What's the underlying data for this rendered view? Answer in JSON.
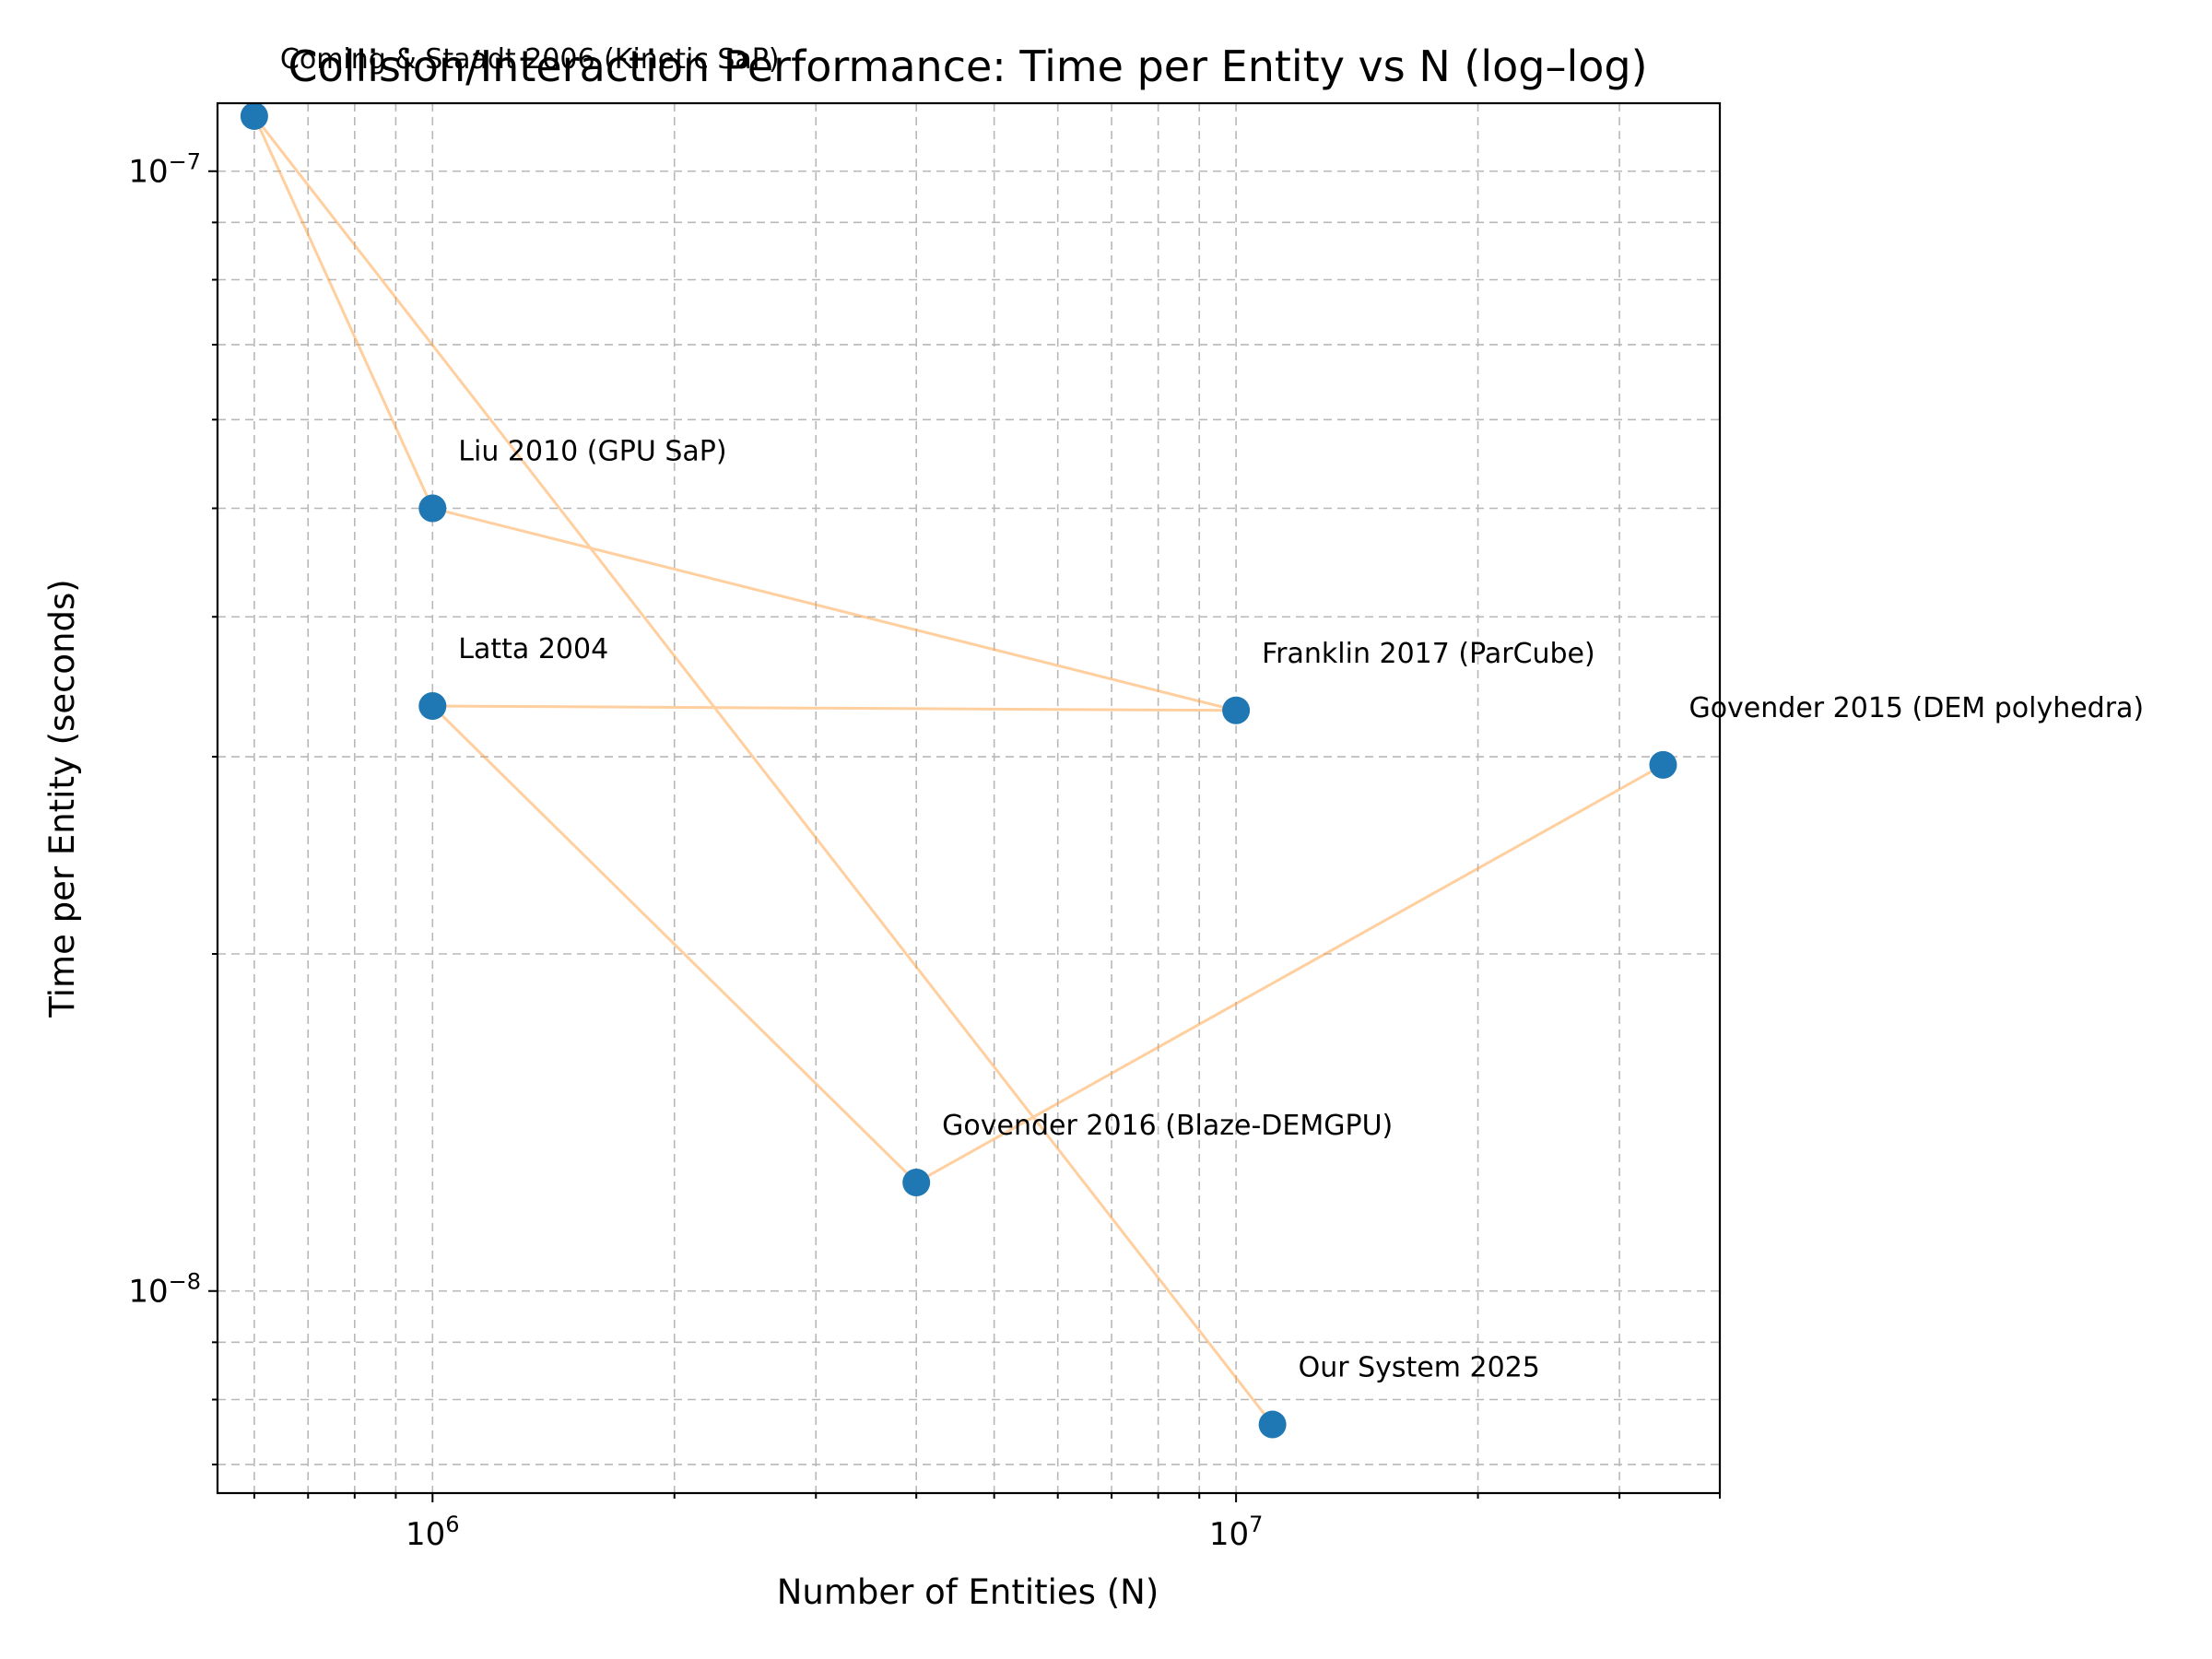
{
  "chart_data": {
    "type": "scatter",
    "title": "Collision/Interaction Performance: Time per Entity vs N (log–log)",
    "xlabel": "Number of Entities (N)",
    "ylabel": "Time per Entity (seconds)",
    "xscale": "log",
    "yscale": "log",
    "xlim": [
      540000,
      40000000
    ],
    "ylim": [
      6.6e-09,
      1.15e-07
    ],
    "grid": true,
    "x_tick_labels": [
      {
        "value": 1000000,
        "base": "10",
        "exp": "6"
      },
      {
        "value": 10000000,
        "base": "10",
        "exp": "7"
      }
    ],
    "y_tick_labels": [
      {
        "value": 1e-07,
        "base": "10",
        "exp": "−7"
      },
      {
        "value": 1e-08,
        "base": "10",
        "exp": "−8"
      }
    ],
    "point_color": "#1f77b4",
    "line_color": "#ff9f40",
    "points": [
      {
        "label": "Coming & Staadt 2006 (Kinetic SaP)",
        "x": 600000,
        "y": 1.12e-07
      },
      {
        "label": "Liu 2010 (GPU SaP)",
        "x": 1000000,
        "y": 5e-08
      },
      {
        "label": "Franklin 2017 (ParCube)",
        "x": 10000000,
        "y": 3.3e-08
      },
      {
        "label": "Latta 2004",
        "x": 1000000,
        "y": 3.33e-08
      },
      {
        "label": "Govender 2016 (Blaze-DEMGPU)",
        "x": 4000000,
        "y": 1.25e-08
      },
      {
        "label": "Govender 2015 (DEM polyhedra)",
        "x": 34000000,
        "y": 2.95e-08
      },
      {
        "label": "Our System 2025",
        "x": 11100000,
        "y": 7.6e-09
      }
    ],
    "connection_order": [
      "Our System 2025",
      "Coming & Staadt 2006 (Kinetic SaP)",
      "Liu 2010 (GPU SaP)",
      "Franklin 2017 (ParCube)",
      "Latta 2004",
      "Govender 2016 (Blaze-DEMGPU)",
      "Govender 2015 (DEM polyhedra)"
    ]
  }
}
